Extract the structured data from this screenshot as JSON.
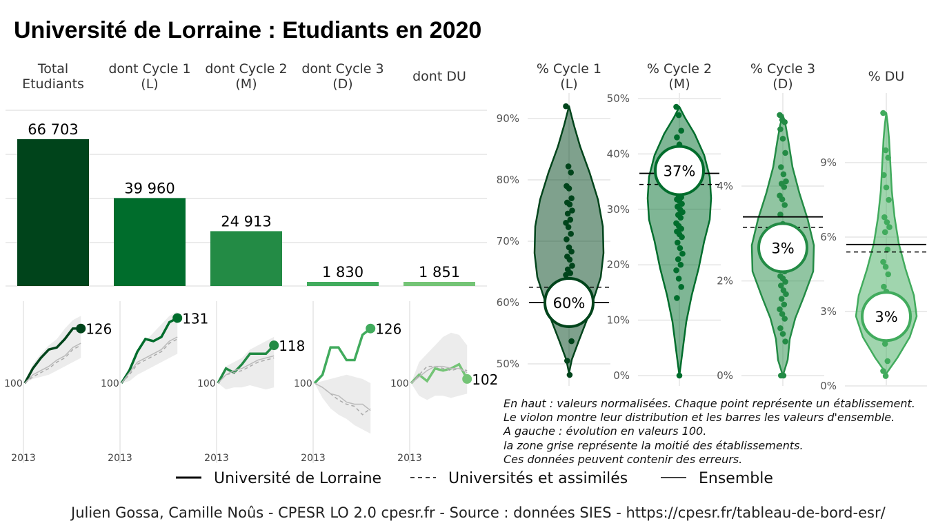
{
  "title": "Université de Lorraine  :  Etudiants en 2020",
  "colors": {
    "total": "#00441b",
    "cycle1": "#006d2c",
    "cycle2": "#238b45",
    "cycle3": "#41ab5d",
    "du": "#74c476"
  },
  "bars": {
    "headers": [
      [
        "Total",
        "Etudiants"
      ],
      [
        "dont Cycle 1",
        "(L)"
      ],
      [
        "dont Cycle 2",
        "(M)"
      ],
      [
        "dont Cycle 3",
        "(D)"
      ],
      [
        "dont DU"
      ]
    ],
    "labels": [
      "66 703",
      "39 960",
      "24 913",
      "1 830",
      "1 851"
    ]
  },
  "evolution": {
    "base_label": "100",
    "year_label": "2013",
    "end_labels": [
      "126",
      "131",
      "118",
      "126",
      "102"
    ]
  },
  "violins": {
    "headers": [
      [
        "% Cycle 1",
        "(L)"
      ],
      [
        "% Cycle 2",
        "(M)"
      ],
      [
        "% Cycle 3",
        "(D)"
      ],
      [
        "% DU"
      ]
    ],
    "ticks": [
      [
        "50%",
        "60%",
        "70%",
        "80%",
        "90%"
      ],
      [
        "0%",
        "10%",
        "20%",
        "30%",
        "40%",
        "50%"
      ],
      [
        "0%",
        "2%",
        "4%"
      ],
      [
        "0%",
        "3%",
        "6%",
        "9%"
      ]
    ],
    "circle_labels": [
      "60%",
      "37%",
      "3%",
      "3%"
    ]
  },
  "notes": [
    "En haut : valeurs normalisées. Chaque point représente un établissement.",
    "Le violon montre leur distribution et les barres les valeurs d'ensemble.",
    "A gauche : évolution en valeurs 100.",
    "la zone grise représente la moitié des établissements.",
    "Ces données peuvent contenir des erreurs."
  ],
  "legend": {
    "items": [
      "Université de Lorraine",
      "Universités et assimilés",
      "Ensemble"
    ]
  },
  "caption": "Julien Gossa, Camille Noûs - CPESR LO 2.0 cpesr.fr - Source : données SIES - https://cpesr.fr/tableau-de-bord-esr/",
  "chart_data": [
    {
      "type": "bar",
      "categories": [
        "Total Etudiants",
        "dont Cycle 1 (L)",
        "dont Cycle 2 (M)",
        "dont Cycle 3 (D)",
        "dont DU"
      ],
      "values": [
        66703,
        39960,
        24913,
        1830,
        1851
      ],
      "ylim": [
        0,
        80000
      ]
    },
    {
      "type": "line",
      "x": [
        2013,
        2014,
        2015,
        2016,
        2017,
        2018,
        2019,
        2020
      ],
      "xlabel": "",
      "ylabel": "",
      "panels": [
        {
          "name": "Total Etudiants",
          "end_value": 126,
          "series": [
            {
              "name": "Université de Lorraine",
              "values": [
                100,
                107,
                112,
                116,
                117,
                121,
                126,
                126
              ]
            },
            {
              "name": "Universités et assimilés",
              "values": [
                100,
                103,
                105,
                107,
                110,
                112,
                116,
                118
              ]
            },
            {
              "name": "Ensemble",
              "values": [
                100,
                104,
                106,
                108,
                111,
                113,
                117,
                119
              ]
            }
          ],
          "band": {
            "low": [
              100,
              102,
              103,
              104,
              106,
              108,
              110,
              112
            ],
            "high": [
              100,
              109,
              114,
              118,
              121,
              126,
              130,
              132
            ]
          }
        },
        {
          "name": "dont Cycle 1 (L)",
          "end_value": 131,
          "series": [
            {
              "name": "Université de Lorraine",
              "values": [
                100,
                106,
                115,
                121,
                120,
                122,
                129,
                131
              ]
            },
            {
              "name": "Universités et assimilés",
              "values": [
                100,
                104,
                109,
                111,
                113,
                115,
                119,
                121
              ]
            },
            {
              "name": "Ensemble",
              "values": [
                100,
                105,
                110,
                112,
                114,
                116,
                120,
                122
              ]
            }
          ],
          "band": {
            "low": [
              100,
              101,
              104,
              106,
              108,
              110,
              112,
              114
            ],
            "high": [
              100,
              108,
              116,
              120,
              124,
              128,
              132,
              134
            ]
          }
        },
        {
          "name": "dont Cycle 2 (M)",
          "end_value": 118,
          "series": [
            {
              "name": "Université de Lorraine",
              "values": [
                100,
                107,
                105,
                109,
                114,
                114,
                114,
                118
              ]
            },
            {
              "name": "Universités et assimilés",
              "values": [
                100,
                104,
                105,
                106,
                108,
                110,
                111,
                112
              ]
            },
            {
              "name": "Ensemble",
              "values": [
                100,
                104,
                106,
                107,
                109,
                111,
                112,
                113
              ]
            }
          ],
          "band": {
            "low": [
              100,
              97,
              98,
              98,
              99,
              98,
              97,
              98
            ],
            "high": [
              100,
              108,
              110,
              112,
              116,
              118,
              120,
              122
            ]
          }
        },
        {
          "name": "dont Cycle 3 (D)",
          "end_value": 126,
          "series": [
            {
              "name": "Université de Lorraine",
              "values": [
                100,
                104,
                117,
                117,
                111,
                111,
                123,
                126
              ]
            },
            {
              "name": "Universités et assimilés",
              "values": [
                100,
                98,
                95,
                92,
                90,
                89,
                85,
                88
              ]
            },
            {
              "name": "Ensemble",
              "values": [
                100,
                98,
                95,
                94,
                91,
                90,
                90,
                87
              ]
            }
          ],
          "band": {
            "low": [
              100,
              93,
              88,
              85,
              83,
              80,
              78,
              76
            ],
            "high": [
              100,
              101,
              102,
              103,
              104,
              103,
              102,
              100
            ]
          }
        },
        {
          "name": "dont DU",
          "end_value": 102,
          "series": [
            {
              "name": "Université de Lorraine",
              "values": [
                100,
                104,
                101,
                107,
                106,
                107,
                109,
                102
              ]
            },
            {
              "name": "Universités et assimilés",
              "values": [
                100,
                104,
                108,
                108,
                107,
                106,
                107,
                106
              ]
            },
            {
              "name": "Ensemble",
              "values": [
                100,
                103,
                106,
                108,
                108,
                107,
                107,
                105
              ]
            }
          ],
          "band": {
            "low": [
              100,
              94,
              92,
              94,
              94,
              93,
              94,
              95
            ],
            "high": [
              100,
              110,
              114,
              118,
              122,
              124,
              123,
              118
            ]
          }
        }
      ]
    },
    {
      "type": "scatter",
      "subtype": "violin",
      "panels": [
        {
          "name": "% Cycle 1 (L)",
          "ylim": [
            0.47,
            0.945
          ],
          "etablissement": 0.6,
          "ensemble": 0.6,
          "universites": 0.625,
          "points": [
            0.92,
            0.822,
            0.812,
            0.79,
            0.786,
            0.77,
            0.763,
            0.76,
            0.75,
            0.745,
            0.735,
            0.73,
            0.723,
            0.712,
            0.703,
            0.69,
            0.683,
            0.675,
            0.67,
            0.66,
            0.654,
            0.648,
            0.645,
            0.632,
            0.62,
            0.6,
            0.58,
            0.537,
            0.505,
            0.482
          ]
        },
        {
          "name": "% Cycle 2 (M)",
          "ylim": [
            -0.005,
            0.52
          ],
          "etablissement": 0.37,
          "ensemble": 0.365,
          "universites": 0.345,
          "points": [
            0.485,
            0.47,
            0.442,
            0.43,
            0.417,
            0.4,
            0.383,
            0.37,
            0.35,
            0.34,
            0.335,
            0.33,
            0.325,
            0.322,
            0.318,
            0.315,
            0.31,
            0.305,
            0.3,
            0.295,
            0.29,
            0.285,
            0.275,
            0.27,
            0.265,
            0.26,
            0.255,
            0.25,
            0.24,
            0.23,
            0.22,
            0.21,
            0.2,
            0.19,
            0.175,
            0.16,
            0.14,
            0.0
          ]
        },
        {
          "name": "% Cycle 3 (D)",
          "ylim": [
            -0.001,
            0.058
          ],
          "etablissement": 0.027,
          "ensemble": 0.0335,
          "universites": 0.0313,
          "points": [
            0.055,
            0.054,
            0.0535,
            0.052,
            0.05,
            0.047,
            0.044,
            0.0425,
            0.041,
            0.0405,
            0.0398,
            0.038,
            0.0372,
            0.036,
            0.034,
            0.032,
            0.0305,
            0.029,
            0.0282,
            0.0275,
            0.027,
            0.026,
            0.025,
            0.024,
            0.022,
            0.021,
            0.0205,
            0.0198,
            0.019,
            0.018,
            0.0172,
            0.0162,
            0.015,
            0.014,
            0.013,
            0.012,
            0.01,
            0.0088,
            0.0072,
            0.0,
            0.0
          ]
        },
        {
          "name": "% DU",
          "ylim": [
            -0.001,
            0.115
          ],
          "etablissement": 0.028,
          "ensemble": 0.057,
          "universites": 0.054,
          "points": [
            0.11,
            0.095,
            0.092,
            0.085,
            0.08,
            0.075,
            0.068,
            0.066,
            0.064,
            0.062,
            0.055,
            0.05,
            0.048,
            0.045,
            0.04,
            0.038,
            0.036,
            0.03,
            0.025,
            0.02,
            0.017,
            0.01,
            0.006,
            0.004
          ]
        }
      ]
    }
  ]
}
